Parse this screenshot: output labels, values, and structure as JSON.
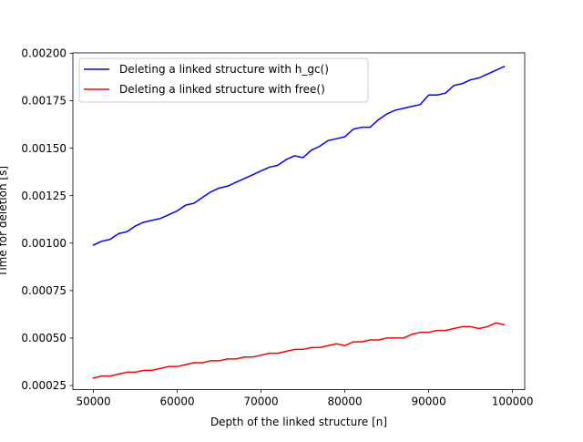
{
  "chart_data": {
    "type": "line",
    "title": "",
    "xlabel": "Depth of the linked structure [n]",
    "ylabel": "Time for deletion [s]",
    "xlim": [
      47550,
      101450
    ],
    "ylim": [
      0.000228,
      0.002002
    ],
    "xticks": [
      50000,
      60000,
      70000,
      80000,
      90000,
      100000
    ],
    "xtick_labels": [
      "50000",
      "60000",
      "70000",
      "80000",
      "90000",
      "100000"
    ],
    "yticks": [
      0.00025,
      0.0005,
      0.00075,
      0.001,
      0.00125,
      0.0015,
      0.00175,
      0.002
    ],
    "ytick_labels": [
      "0.00025",
      "0.00050",
      "0.00075",
      "0.00100",
      "0.00125",
      "0.00150",
      "0.00175",
      "0.00200"
    ],
    "grid": false,
    "legend_position": "top-left",
    "x": [
      50000,
      51000,
      52000,
      53000,
      54000,
      55000,
      56000,
      57000,
      58000,
      59000,
      60000,
      61000,
      62000,
      63000,
      64000,
      65000,
      66000,
      67000,
      68000,
      69000,
      70000,
      71000,
      72000,
      73000,
      74000,
      75000,
      76000,
      77000,
      78000,
      79000,
      80000,
      81000,
      82000,
      83000,
      84000,
      85000,
      86000,
      87000,
      88000,
      89000,
      90000,
      91000,
      92000,
      93000,
      94000,
      95000,
      96000,
      97000,
      98000,
      99000
    ],
    "series": [
      {
        "name": "Deleting a linked structure with h_gc()",
        "color": "#0000ff",
        "values": [
          0.00099,
          0.00101,
          0.00102,
          0.00105,
          0.00106,
          0.00109,
          0.00111,
          0.00112,
          0.00113,
          0.00115,
          0.00117,
          0.0012,
          0.00121,
          0.00124,
          0.00127,
          0.00129,
          0.0013,
          0.00132,
          0.00134,
          0.00136,
          0.00138,
          0.0014,
          0.00141,
          0.00144,
          0.00146,
          0.00145,
          0.00149,
          0.00151,
          0.00154,
          0.00155,
          0.00156,
          0.0016,
          0.00161,
          0.00161,
          0.00165,
          0.00168,
          0.0017,
          0.00171,
          0.00172,
          0.00173,
          0.00178,
          0.00178,
          0.00179,
          0.00183,
          0.00184,
          0.00186,
          0.00187,
          0.00189,
          0.00191,
          0.00193
        ]
      },
      {
        "name": "Deleting a linked structure with free()",
        "color": "#ff0000",
        "values": [
          0.00029,
          0.0003,
          0.0003,
          0.00031,
          0.00032,
          0.00032,
          0.00033,
          0.00033,
          0.00034,
          0.00035,
          0.00035,
          0.00036,
          0.00037,
          0.00037,
          0.00038,
          0.00038,
          0.00039,
          0.00039,
          0.0004,
          0.0004,
          0.00041,
          0.00042,
          0.00042,
          0.00043,
          0.00044,
          0.00044,
          0.00045,
          0.00045,
          0.00046,
          0.00047,
          0.00046,
          0.00048,
          0.00048,
          0.00049,
          0.00049,
          0.0005,
          0.0005,
          0.0005,
          0.00052,
          0.00053,
          0.00053,
          0.00054,
          0.00054,
          0.00055,
          0.00056,
          0.00056,
          0.00055,
          0.00056,
          0.00058,
          0.00057
        ]
      }
    ]
  }
}
